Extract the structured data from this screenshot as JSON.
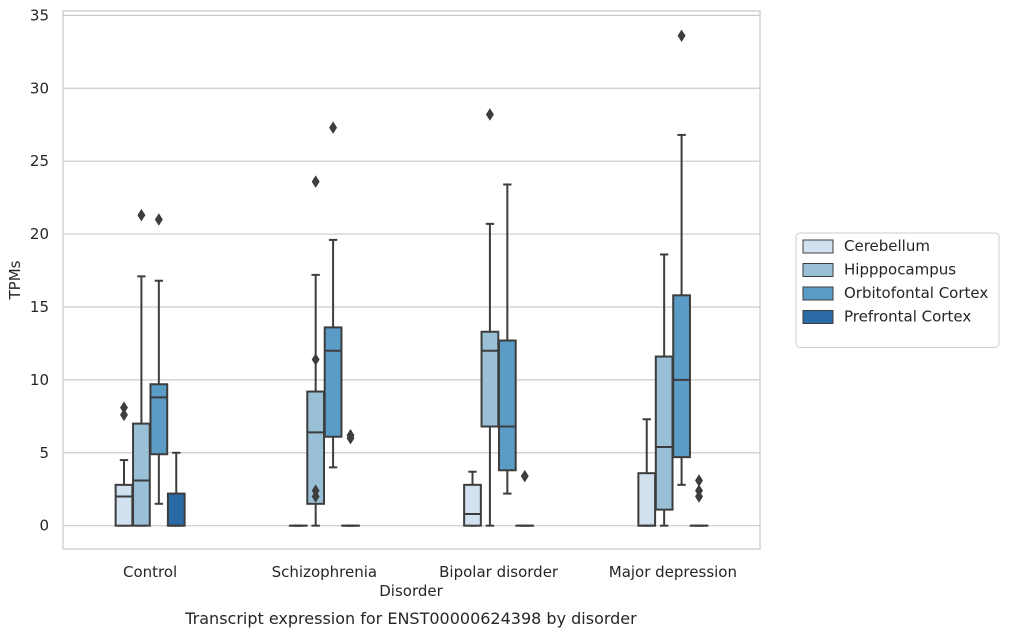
{
  "chart_data": {
    "type": "box",
    "title": "",
    "caption": "Transcript expression for ENST00000624398 by disorder",
    "xlabel": "Disorder",
    "ylabel": "TPMs",
    "ylim": [
      -1.6,
      35.3
    ],
    "yticks": [
      0,
      5,
      10,
      15,
      20,
      25,
      30,
      35
    ],
    "grid": "horizontal",
    "legend_position": "right",
    "categories": [
      "Control",
      "Schizophrenia",
      "Bipolar disorder",
      "Major depression"
    ],
    "series": [
      {
        "name": "Cerebellum",
        "color": "#d1e1ef",
        "boxes": [
          {
            "whislo": 0,
            "q1": 0,
            "med": 2.0,
            "q3": 2.8,
            "whishi": 4.5,
            "fliers": [
              7.6,
              8.1
            ]
          },
          {
            "whislo": 0,
            "q1": 0,
            "med": 0,
            "q3": 0,
            "whishi": 0,
            "fliers": []
          },
          {
            "whislo": 0,
            "q1": 0,
            "med": 0.8,
            "q3": 2.8,
            "whishi": 3.7,
            "fliers": []
          },
          {
            "whislo": 0,
            "q1": 0,
            "med": 0,
            "q3": 3.6,
            "whishi": 7.3,
            "fliers": []
          }
        ]
      },
      {
        "name": "Hipppocampus",
        "color": "#9ac0d8",
        "boxes": [
          {
            "whislo": 0,
            "q1": 0,
            "med": 3.1,
            "q3": 7.0,
            "whishi": 17.1,
            "fliers": [
              21.3
            ]
          },
          {
            "whislo": 0,
            "q1": 1.5,
            "med": 6.4,
            "q3": 9.2,
            "whishi": 17.2,
            "fliers": [
              2.0,
              2.4,
              11.4,
              23.6
            ]
          },
          {
            "whislo": 0,
            "q1": 6.8,
            "med": 12.0,
            "q3": 13.3,
            "whishi": 20.7,
            "fliers": [
              28.2
            ]
          },
          {
            "whislo": 0,
            "q1": 1.1,
            "med": 5.4,
            "q3": 11.6,
            "whishi": 18.6,
            "fliers": []
          }
        ]
      },
      {
        "name": "Orbitofontal Cortex",
        "color": "#5a9cc6",
        "boxes": [
          {
            "whislo": 1.5,
            "q1": 4.9,
            "med": 8.8,
            "q3": 9.7,
            "whishi": 16.8,
            "fliers": [
              21.0
            ]
          },
          {
            "whislo": 4.0,
            "q1": 6.1,
            "med": 12.0,
            "q3": 13.6,
            "whishi": 19.6,
            "fliers": [
              27.3
            ]
          },
          {
            "whislo": 2.2,
            "q1": 3.8,
            "med": 6.8,
            "q3": 12.7,
            "whishi": 23.4,
            "fliers": []
          },
          {
            "whislo": 2.8,
            "q1": 4.7,
            "med": 10.0,
            "q3": 15.8,
            "whishi": 26.8,
            "fliers": [
              33.6
            ]
          }
        ]
      },
      {
        "name": "Prefrontal Cortex",
        "color": "#2a6ba6",
        "boxes": [
          {
            "whislo": 0,
            "q1": 0,
            "med": 0,
            "q3": 2.2,
            "whishi": 5.0,
            "fliers": []
          },
          {
            "whislo": 0,
            "q1": 0,
            "med": 0,
            "q3": 0,
            "whishi": 0,
            "fliers": [
              6.0,
              6.2
            ]
          },
          {
            "whislo": 0,
            "q1": 0,
            "med": 0,
            "q3": 0,
            "whishi": 0,
            "fliers": [
              3.4
            ]
          },
          {
            "whislo": 0,
            "q1": 0,
            "med": 0,
            "q3": 0,
            "whishi": 0,
            "fliers": [
              2.0,
              2.4,
              3.1
            ]
          }
        ]
      }
    ]
  }
}
